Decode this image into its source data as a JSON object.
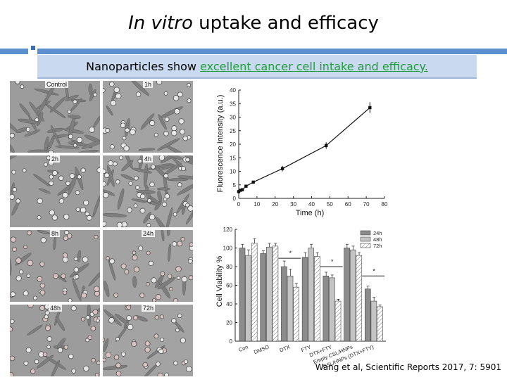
{
  "slide": {
    "title_italic": "In vitro",
    "title_rest": " uptake and efficacy",
    "banner_prefix": "Nanoparticles show ",
    "banner_highlight": "excellent cancer cell intake and efficacy",
    "banner_suffix": ".",
    "citation": "Wang et al, Scientific Reports 2017, 7: 5901",
    "accent_color": "#5b8fd0",
    "banner_color": "#c9d9ef",
    "highlight_color": "#1f9e3a"
  },
  "micrographs": {
    "labels": [
      "Control",
      "1h",
      "2h",
      "4h",
      "8h",
      "24h",
      "48h",
      "72h"
    ]
  },
  "chart_data": [
    {
      "type": "line",
      "xlabel": "Time (h)",
      "ylabel": "Fluorescence Intensity (a.u.)",
      "xlim": [
        0,
        80
      ],
      "ylim": [
        0,
        40
      ],
      "xticks": [
        0,
        10,
        20,
        30,
        40,
        50,
        60,
        70,
        80
      ],
      "yticks": [
        0,
        5,
        10,
        15,
        20,
        25,
        30,
        35,
        40
      ],
      "series": [
        {
          "x": [
            0,
            1,
            2,
            4,
            8,
            24,
            48,
            72
          ],
          "y": [
            2.5,
            3.0,
            3.2,
            4.5,
            6.0,
            11.0,
            19.5,
            33.5
          ],
          "err": [
            0.3,
            0.3,
            0.3,
            0.4,
            0.5,
            1.0,
            1.2,
            2.0
          ]
        }
      ]
    },
    {
      "type": "bar",
      "ylabel": "Cell Viability %",
      "ylim": [
        0,
        120
      ],
      "yticks": [
        0,
        20,
        40,
        60,
        80,
        100,
        120
      ],
      "categories": [
        "Con",
        "DMSO",
        "DTX",
        "FTY",
        "DTX+FTY",
        "Empty CSL/HNPs",
        "CSL/HNPs (DTX+FTY)"
      ],
      "legend_position": "top-right",
      "series": [
        {
          "name": "24h",
          "values": [
            100,
            94,
            80,
            90,
            70,
            100,
            56
          ],
          "err": [
            4,
            3,
            6,
            5,
            4,
            4,
            3
          ]
        },
        {
          "name": "48h",
          "values": [
            92,
            101,
            70,
            100,
            68,
            98,
            43
          ],
          "err": [
            6,
            4,
            7,
            4,
            3,
            4,
            4
          ]
        },
        {
          "name": "72h",
          "values": [
            105,
            102,
            58,
            91,
            43,
            92,
            37
          ],
          "err": [
            5,
            3,
            4,
            4,
            2,
            3,
            2
          ]
        }
      ],
      "annotations": [
        "*",
        "*",
        "*"
      ]
    }
  ]
}
